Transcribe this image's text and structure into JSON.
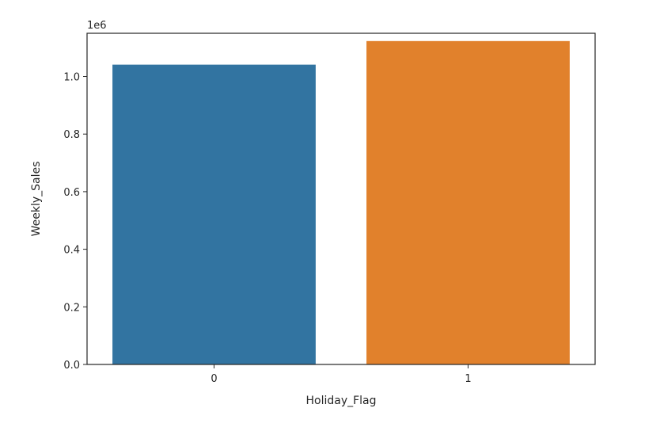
{
  "chart_data": {
    "type": "bar",
    "title": "",
    "xlabel": "Holiday_Flag",
    "ylabel": "Weekly_Sales",
    "categories": [
      "0",
      "1"
    ],
    "values": [
      1041000,
      1123000
    ],
    "colors": [
      "#3274a1",
      "#e1812c"
    ],
    "ylim": [
      0,
      1150000
    ],
    "yticks": [
      0,
      200000,
      400000,
      600000,
      800000,
      1000000
    ],
    "ytick_labels": [
      "0.0",
      "0.2",
      "0.4",
      "0.6",
      "0.8",
      "1.0"
    ],
    "offset_label": "1e6",
    "grid": false,
    "legend": "none"
  }
}
